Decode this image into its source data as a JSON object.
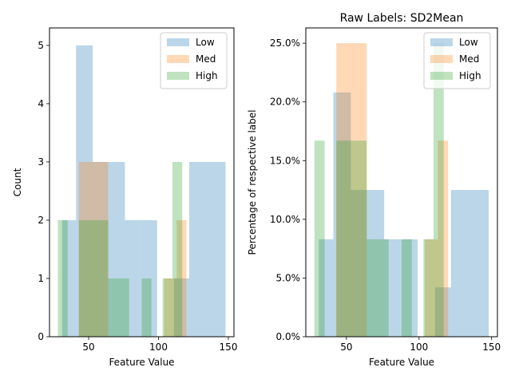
{
  "figure": {
    "background": "#ffffff"
  },
  "chart_data": [
    {
      "type": "histogram",
      "title": "",
      "xlabel": "Feature Value",
      "ylabel": "Count",
      "xlim": [
        22,
        154
      ],
      "ylim": [
        0,
        5.3
      ],
      "xticks": [
        50,
        100,
        150
      ],
      "yticks": [
        0,
        1,
        2,
        3,
        4,
        5
      ],
      "ytick_labels": [
        "0",
        "1",
        "2",
        "3",
        "4",
        "5"
      ],
      "legend": {
        "placement": "top-right",
        "entries": [
          "Low",
          "Med",
          "High"
        ]
      },
      "series": [
        {
          "name": "Low",
          "color": "#1f77b4",
          "bins": [
            [
              31,
              41,
              2
            ],
            [
              41,
              53,
              5
            ],
            [
              53,
              64,
              3
            ],
            [
              64,
              76,
              3
            ],
            [
              76,
              87,
              2
            ],
            [
              87,
              99,
              2
            ],
            [
              99,
              111,
              0
            ],
            [
              111,
              122,
              1
            ],
            [
              122,
              134,
              3
            ],
            [
              134,
              148,
              3
            ]
          ]
        },
        {
          "name": "Med",
          "color": "#ff7f0e",
          "bins": [
            [
              43,
              53,
              3
            ],
            [
              53,
              64,
              3
            ],
            [
              64,
              104,
              0
            ],
            [
              104,
              113,
              1
            ],
            [
              113,
              120,
              2
            ]
          ]
        },
        {
          "name": "High",
          "color": "#2ca02c",
          "bins": [
            [
              28,
              35,
              2
            ],
            [
              35,
              43,
              0
            ],
            [
              43,
              52,
              2
            ],
            [
              52,
              64,
              2
            ],
            [
              64,
              69,
              1
            ],
            [
              69,
              79,
              1
            ],
            [
              79,
              88,
              0
            ],
            [
              88,
              95,
              1
            ],
            [
              95,
              103,
              0
            ],
            [
              103,
              110,
              1
            ],
            [
              110,
              117,
              3
            ]
          ]
        }
      ]
    },
    {
      "type": "histogram",
      "title": "Raw Labels: SD2Mean",
      "xlabel": "Feature Value",
      "ylabel": "Percentage of respective label",
      "xlim": [
        22,
        154
      ],
      "ylim": [
        0,
        0.263
      ],
      "xticks": [
        50,
        100,
        150
      ],
      "yticks": [
        0,
        0.05,
        0.1,
        0.15,
        0.2,
        0.25
      ],
      "ytick_labels": [
        "0.0%",
        "5.0%",
        "10.0%",
        "15.0%",
        "20.0%",
        "25.0%"
      ],
      "legend": {
        "placement": "top-right",
        "entries": [
          "Low",
          "Med",
          "High"
        ]
      },
      "series": [
        {
          "name": "Low",
          "color": "#1f77b4",
          "bins": [
            [
              31,
              41,
              0.083
            ],
            [
              41,
              53,
              0.208
            ],
            [
              53,
              64,
              0.125
            ],
            [
              64,
              76,
              0.125
            ],
            [
              76,
              87,
              0.083
            ],
            [
              87,
              99,
              0.083
            ],
            [
              99,
              111,
              0
            ],
            [
              111,
              122,
              0.042
            ],
            [
              122,
              134,
              0.125
            ],
            [
              134,
              148,
              0.125
            ]
          ]
        },
        {
          "name": "Med",
          "color": "#ff7f0e",
          "bins": [
            [
              43,
              53,
              0.25
            ],
            [
              53,
              64,
              0.25
            ],
            [
              64,
              104,
              0
            ],
            [
              104,
              113,
              0.083
            ],
            [
              113,
              120,
              0.167
            ]
          ]
        },
        {
          "name": "High",
          "color": "#2ca02c",
          "bins": [
            [
              28,
              35,
              0.167
            ],
            [
              35,
              43,
              0
            ],
            [
              43,
              52,
              0.167
            ],
            [
              52,
              64,
              0.167
            ],
            [
              64,
              69,
              0.083
            ],
            [
              69,
              79,
              0.083
            ],
            [
              79,
              88,
              0
            ],
            [
              88,
              95,
              0.083
            ],
            [
              95,
              103,
              0
            ],
            [
              103,
              110,
              0.083
            ],
            [
              110,
              117,
              0.25
            ]
          ]
        }
      ]
    }
  ]
}
